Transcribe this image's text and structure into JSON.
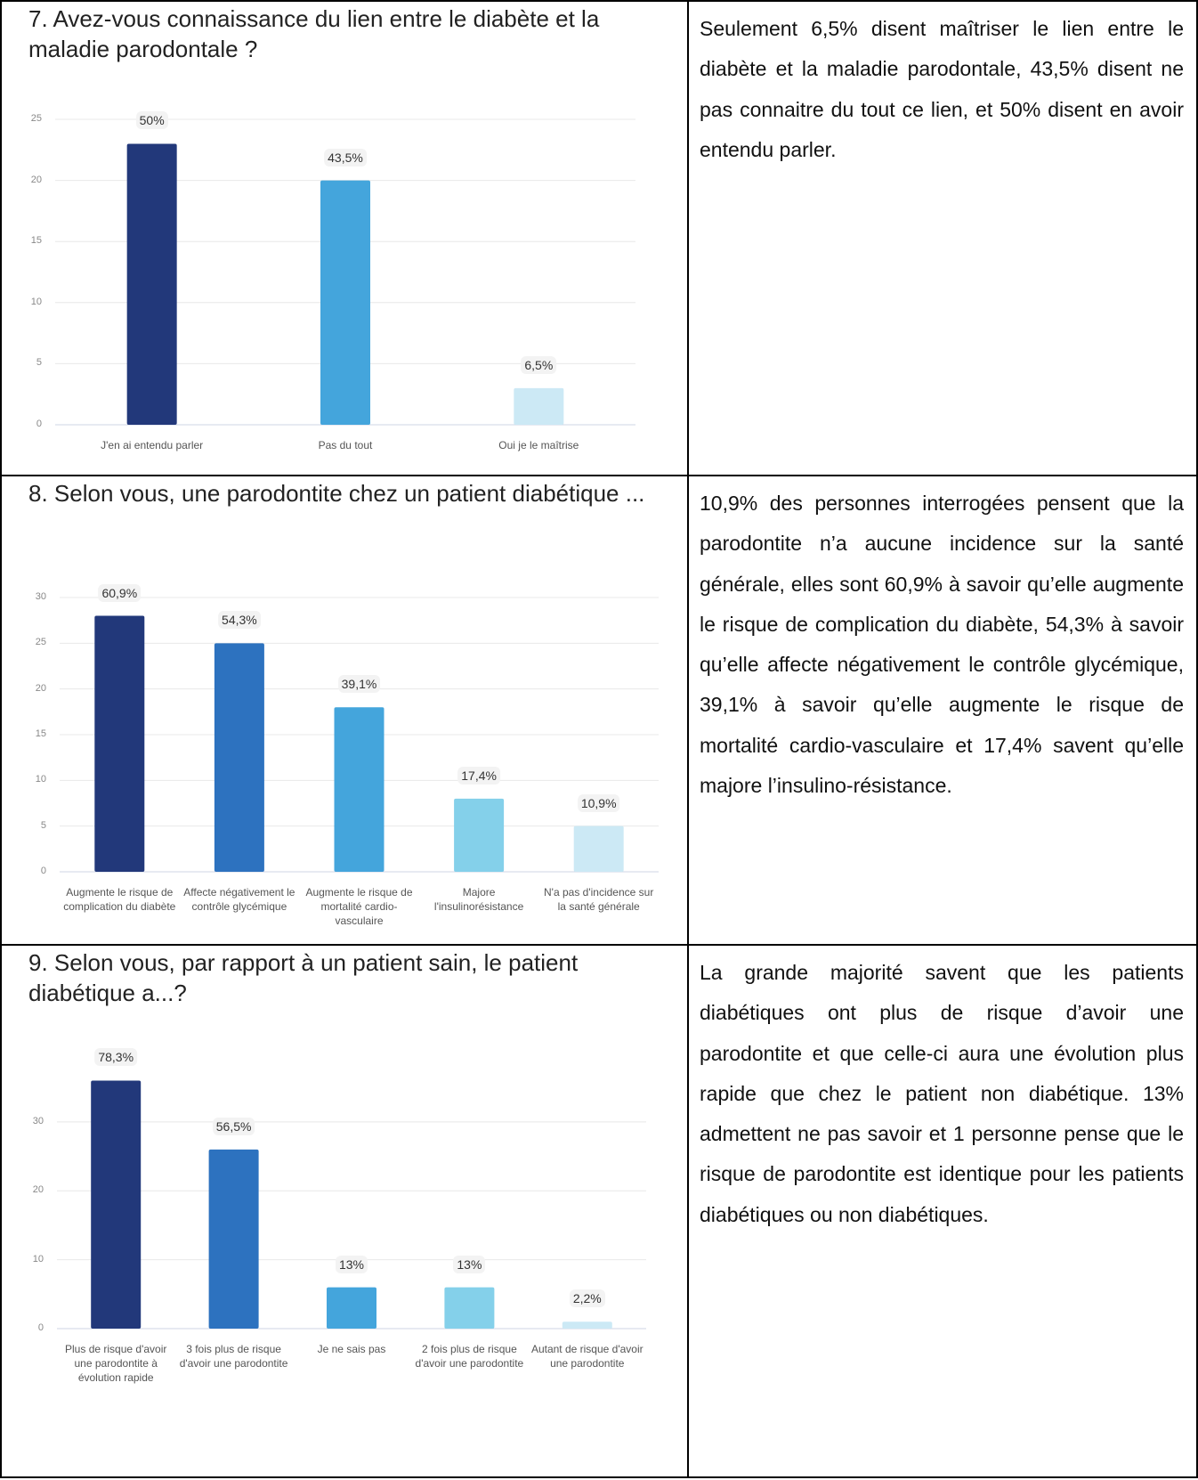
{
  "chart_data": [
    {
      "type": "bar",
      "title": "7. Avez-vous connaissance du lien entre le diabète et la maladie parodontale ?",
      "categories": [
        "J'en ai entendu parler",
        "Pas du tout",
        "Oui je le maîtrise"
      ],
      "values": [
        23,
        20,
        3
      ],
      "value_labels": [
        "50%",
        "43,5%",
        "6,5%"
      ],
      "colors": [
        "#22387a",
        "#44a5dc",
        "#cce9f5"
      ],
      "ylim": [
        0,
        25
      ],
      "yticks": [
        0,
        5,
        10,
        15,
        20,
        25
      ],
      "grid": true
    },
    {
      "type": "bar",
      "title": "8. Selon vous, une parodontite chez un patient diabétique ...",
      "categories": [
        "Augmente le risque de complication du diabète",
        "Affecte négativement le contrôle glycémique",
        "Augmente le risque de mortalité cardio-vasculaire",
        "Majore l'insulinorésistance",
        "N'a pas d'incidence sur la santé générale"
      ],
      "values": [
        28,
        25,
        18,
        8,
        5
      ],
      "value_labels": [
        "60,9%",
        "54,3%",
        "39,1%",
        "17,4%",
        "10,9%"
      ],
      "colors": [
        "#22387a",
        "#2d72bf",
        "#44a5dc",
        "#84d0ea",
        "#cce9f5"
      ],
      "ylim": [
        0,
        30
      ],
      "yticks": [
        0,
        5,
        10,
        15,
        20,
        25,
        30
      ],
      "grid": true
    },
    {
      "type": "bar",
      "title": "9. Selon vous, par rapport à un patient sain, le patient diabétique a...?",
      "categories": [
        "Plus de risque d'avoir une parodontite à évolution rapide",
        "3 fois plus de risque d'avoir une parodontite",
        "Je ne sais pas",
        "2 fois plus de risque d'avoir une parodontite",
        "Autant de risque d'avoir une parodontite"
      ],
      "values": [
        36,
        26,
        6,
        6,
        1
      ],
      "value_labels": [
        "78,3%",
        "56,5%",
        "13%",
        "13%",
        "2,2%"
      ],
      "colors": [
        "#22387a",
        "#2d72bf",
        "#44a5dc",
        "#84d0ea",
        "#cce9f5"
      ],
      "ylim": [
        0,
        38
      ],
      "yticks": [
        0,
        10,
        20,
        30
      ],
      "grid": true
    }
  ],
  "texts": [
    "Seulement 6,5% disent maîtriser le lien entre le diabète et la maladie parodontale, 43,5% disent ne pas connaitre du tout ce lien, et 50% disent en avoir entendu parler.",
    "10,9% des personnes interrogées pensent que la parodontite n’a aucune incidence sur la santé générale, elles sont 60,9% à savoir qu’elle augmente le risque de complication du diabète, 54,3% à savoir qu’elle affecte négativement le contrôle glycémique, 39,1% à savoir qu’elle augmente le risque de mortalité cardio-vasculaire et 17,4% savent qu’elle majore l’insulino-résistance.",
    "La grande majorité savent que les patients diabétiques ont plus de risque d’avoir une parodontite et que celle-ci aura une évolution plus rapide que chez le patient non diabétique. 13% admettent ne pas savoir et 1 personne pense que le risque de parodontite est identique pour les patients diabétiques ou non diabétiques."
  ]
}
